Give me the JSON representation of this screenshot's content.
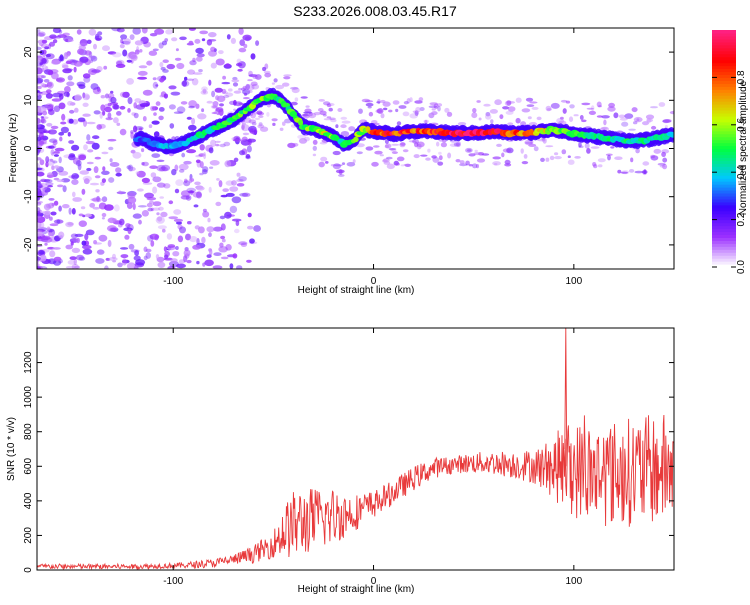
{
  "title": "S233.2026.008.03.45.R17",
  "chart_data": [
    {
      "type": "heatmap",
      "xlabel": "Height of straight line (km)",
      "ylabel": "Frequency (Hz)",
      "xlim": [
        -168,
        150
      ],
      "ylim": [
        -25,
        25
      ],
      "x_ticks": [
        -100,
        0,
        100
      ],
      "y_ticks": [
        -20,
        -10,
        0,
        10,
        20
      ],
      "colorbar": {
        "label": "Normalized spectral amplitude",
        "range": [
          0,
          1
        ],
        "ticks": [
          0.0,
          0.2,
          0.4,
          0.6,
          0.8
        ],
        "tick_labels": [
          "0.0",
          "0.2",
          "0.4",
          "0.6",
          "0.8"
        ],
        "colormap": [
          "#ffffff",
          "#9b30ff",
          "#3a00ff",
          "#00c8ff",
          "#00ff40",
          "#c8ff00",
          "#ff8000",
          "#ff0000",
          "#ff2080"
        ]
      },
      "ridge": {
        "x": [
          -115,
          -110,
          -105,
          -100,
          -95,
          -90,
          -85,
          -80,
          -75,
          -70,
          -65,
          -60,
          -55,
          -50,
          -45,
          -40,
          -35,
          -30,
          -25,
          -20,
          -15,
          -10,
          -5,
          0,
          10,
          20,
          30,
          40,
          50,
          60,
          70,
          80,
          90,
          100,
          110,
          120,
          130,
          140,
          150
        ],
        "y": [
          2,
          1,
          0.5,
          0.5,
          1,
          2,
          3,
          4,
          5,
          6,
          7.5,
          9,
          10.5,
          11,
          9.5,
          7,
          4.5,
          4,
          3.5,
          2.5,
          1,
          1.5,
          4,
          3.5,
          3,
          3.5,
          3.5,
          3.2,
          3.2,
          3.5,
          3.2,
          3.3,
          4,
          3,
          2.5,
          2,
          1.5,
          2,
          3
        ],
        "amplitude": [
          0.3,
          0.3,
          0.35,
          0.35,
          0.4,
          0.4,
          0.45,
          0.45,
          0.5,
          0.5,
          0.55,
          0.55,
          0.55,
          0.5,
          0.5,
          0.5,
          0.55,
          0.55,
          0.6,
          0.55,
          0.45,
          0.55,
          0.6,
          0.8,
          0.85,
          0.8,
          0.85,
          0.95,
          0.95,
          0.9,
          0.8,
          0.75,
          0.6,
          0.5,
          0.45,
          0.45,
          0.45,
          0.45,
          0.4
        ]
      }
    },
    {
      "type": "line",
      "xlabel": "Height of straight line (km)",
      "ylabel": "SNR (10 * v/v)",
      "xlim": [
        -168,
        150
      ],
      "ylim": [
        0,
        1400
      ],
      "x_ticks": [
        -100,
        0,
        100
      ],
      "y_ticks": [
        0,
        200,
        400,
        600,
        800,
        1000,
        1200
      ],
      "color": "#e8393a",
      "envelope": {
        "x": [
          -168,
          -140,
          -120,
          -100,
          -90,
          -80,
          -70,
          -60,
          -50,
          -45,
          -40,
          -35,
          -30,
          -25,
          -20,
          -10,
          0,
          10,
          20,
          30,
          40,
          50,
          60,
          70,
          80,
          90,
          95,
          100,
          110,
          120,
          130,
          140,
          150
        ],
        "mean": [
          20,
          20,
          20,
          25,
          30,
          40,
          60,
          90,
          150,
          220,
          260,
          280,
          290,
          300,
          310,
          330,
          380,
          450,
          530,
          590,
          610,
          620,
          620,
          610,
          600,
          590,
          600,
          580,
          560,
          560,
          570,
          580,
          590
        ],
        "spread": [
          15,
          15,
          15,
          15,
          20,
          25,
          30,
          50,
          80,
          150,
          200,
          200,
          190,
          180,
          170,
          110,
          80,
          70,
          70,
          60,
          50,
          60,
          70,
          80,
          100,
          180,
          260,
          280,
          300,
          310,
          320,
          320,
          330
        ]
      }
    }
  ]
}
